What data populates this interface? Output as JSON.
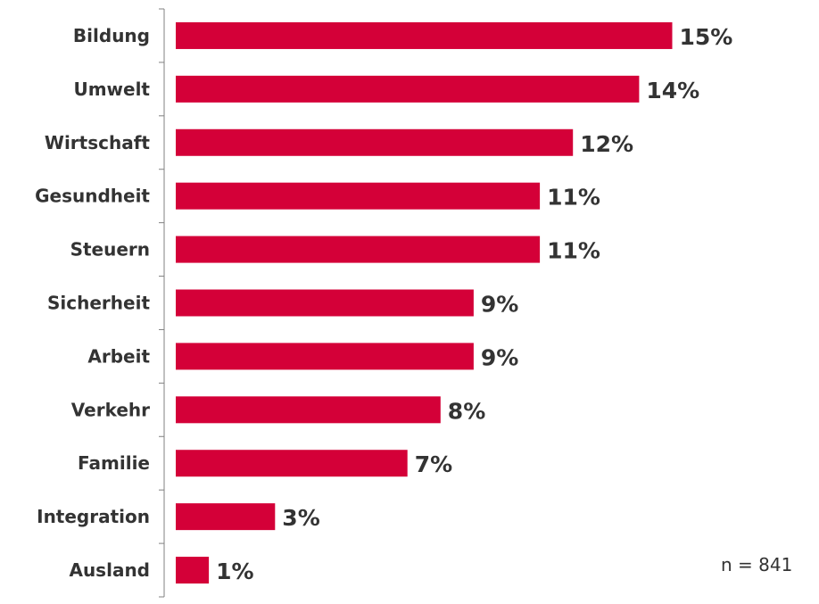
{
  "chart_data": {
    "type": "bar",
    "orientation": "horizontal",
    "categories": [
      "Bildung",
      "Umwelt",
      "Wirtschaft",
      "Gesundheit",
      "Steuern",
      "Sicherheit",
      "Arbeit",
      "Verkehr",
      "Familie",
      "Integration",
      "Ausland"
    ],
    "values": [
      15,
      14,
      12,
      11,
      11,
      9,
      9,
      8,
      7,
      3,
      1
    ],
    "value_labels": [
      "15%",
      "14%",
      "12%",
      "11%",
      "11%",
      "9%",
      "9%",
      "8%",
      "7%",
      "3%",
      "1%"
    ],
    "bar_color": "#d40038",
    "grid": false,
    "legend": "none",
    "note": "n = 841"
  }
}
